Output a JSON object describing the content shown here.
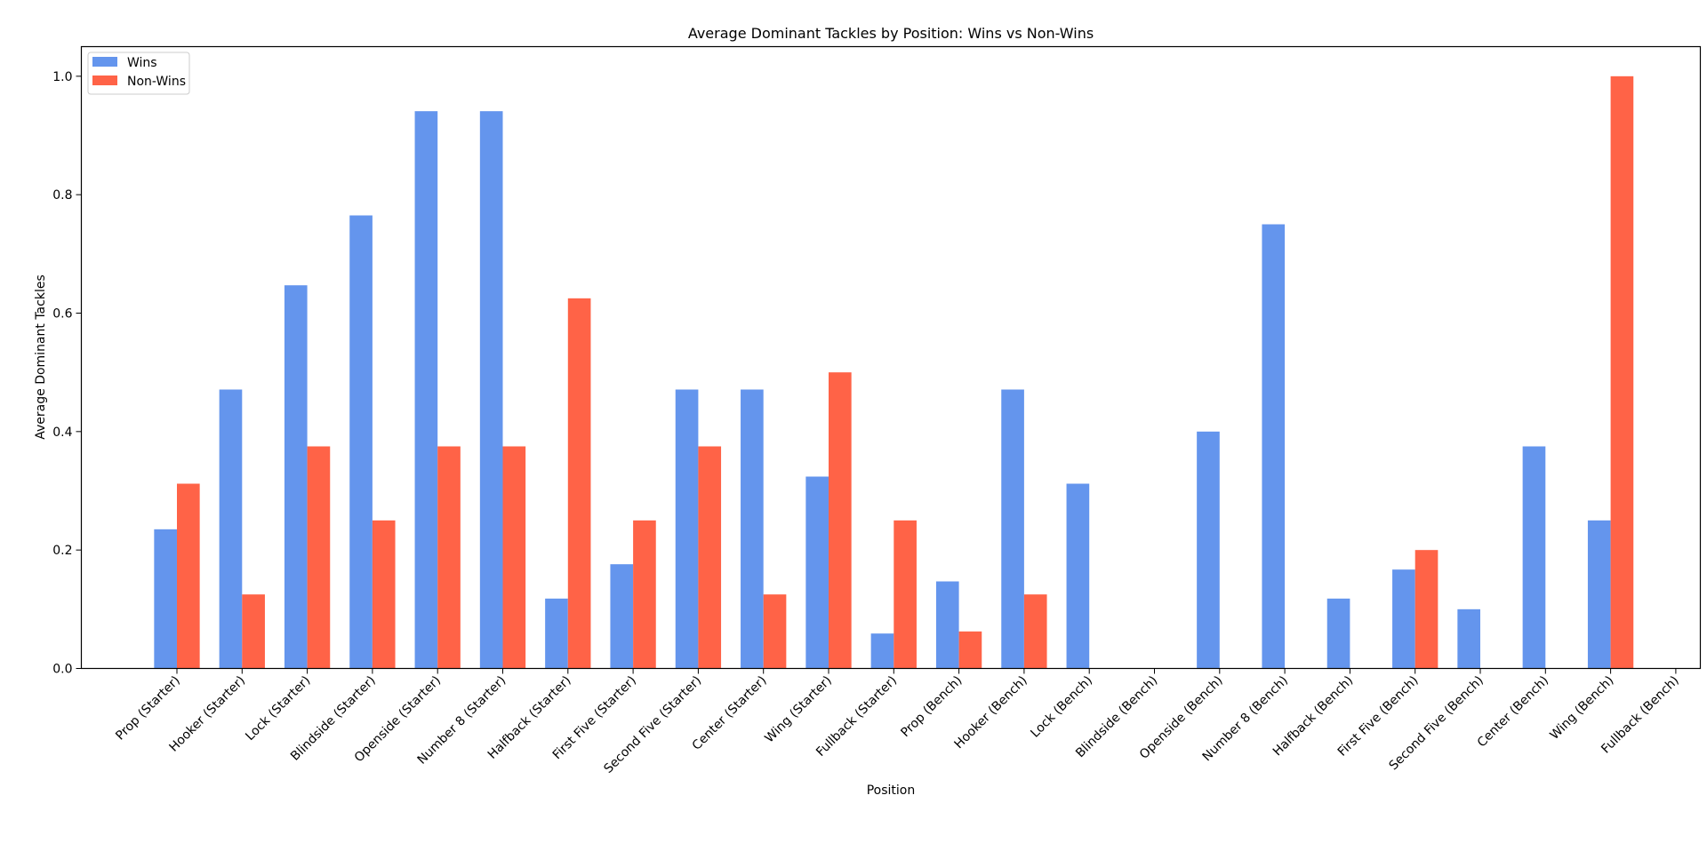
{
  "chart_data": {
    "type": "bar",
    "title": "Average Dominant Tackles by Position: Wins vs Non-Wins",
    "xlabel": "Position",
    "ylabel": "Average Dominant Tackles",
    "ylim": [
      0,
      1.05
    ],
    "yticks": [
      0.0,
      0.2,
      0.4,
      0.6,
      0.8,
      1.0
    ],
    "ytick_labels": [
      "0.0",
      "0.2",
      "0.4",
      "0.6",
      "0.8",
      "1.0"
    ],
    "grid": false,
    "legend": "top-left",
    "categories": [
      "Prop (Starter)",
      "Hooker (Starter)",
      "Lock (Starter)",
      "Blindside (Starter)",
      "Openside (Starter)",
      "Number 8 (Starter)",
      "Halfback (Starter)",
      "First Five (Starter)",
      "Second Five (Starter)",
      "Center (Starter)",
      "Wing (Starter)",
      "Fullback (Starter)",
      "Prop (Bench)",
      "Hooker (Bench)",
      "Lock (Bench)",
      "Blindside (Bench)",
      "Openside (Bench)",
      "Number 8 (Bench)",
      "Halfback (Bench)",
      "First Five (Bench)",
      "Second Five (Bench)",
      "Center (Bench)",
      "Wing (Bench)",
      "Fullback (Bench)"
    ],
    "series": [
      {
        "name": "Wins",
        "color": "#6495ED",
        "values": [
          0.235,
          0.471,
          0.647,
          0.765,
          0.941,
          0.941,
          0.118,
          0.176,
          0.471,
          0.471,
          0.324,
          0.059,
          0.147,
          0.471,
          0.312,
          0.0,
          0.4,
          0.75,
          0.118,
          0.167,
          0.1,
          0.375,
          0.25,
          0.0
        ]
      },
      {
        "name": "Non-Wins",
        "color": "#FF6347",
        "values": [
          0.312,
          0.125,
          0.375,
          0.25,
          0.375,
          0.375,
          0.625,
          0.25,
          0.375,
          0.125,
          0.5,
          0.25,
          0.0625,
          0.125,
          0.0,
          0.0,
          0.0,
          0.0,
          0.0,
          0.2,
          0.0,
          0.0,
          1.0,
          0.0
        ]
      }
    ]
  }
}
